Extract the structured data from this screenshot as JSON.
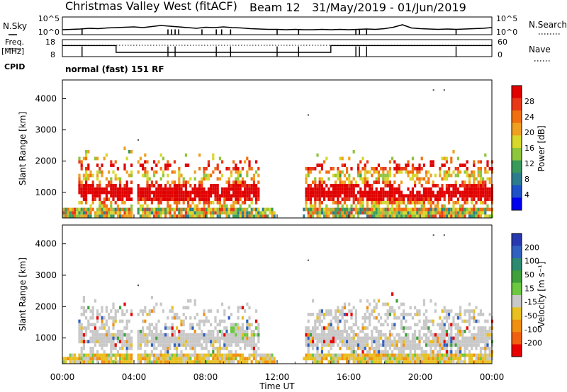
{
  "header": {
    "station": "Christmas Valley West (fitACF)",
    "beam": "Beam 12",
    "dates": "31/May/2019 - 01/Jun/2019"
  },
  "left_labels": {
    "nsky": "N.Sky",
    "freq_line1": "Freq.",
    "freq_line2": "[MHz]",
    "cpid": "CPID",
    "cpid_value": "normal (fast) 151 RF"
  },
  "right_labels": {
    "nsearch": "N.Search",
    "nave": "Nave"
  },
  "chart_data": [
    {
      "type": "line",
      "name": "noise-panel",
      "ylabel": "N.Sky",
      "y2label": "N.Search",
      "ytick_labels": [
        "10^0",
        "10^5"
      ],
      "y2tick_labels": [
        "10^0",
        "10^5"
      ],
      "x_hours": [
        0,
        0.5,
        1,
        1.5,
        2,
        2.5,
        3,
        3.5,
        4,
        4.5,
        5,
        5.5,
        6,
        6.5,
        7,
        7.5,
        8,
        8.5,
        9,
        9.5,
        10,
        10.5,
        11,
        11.5,
        12,
        12.5,
        13,
        13.5,
        14,
        14.5,
        15,
        15.5,
        16,
        16.5,
        17,
        17.5,
        18,
        18.5,
        19,
        19.5,
        20,
        20.5,
        21,
        21.5,
        22,
        22.5,
        23,
        23.5,
        24
      ],
      "nsky_log": [
        1.4,
        1.5,
        1.6,
        1.8,
        1.7,
        1.9,
        2.0,
        2.1,
        2.2,
        2.0,
        2.3,
        2.6,
        2.4,
        2.2,
        2.0,
        1.8,
        2.1,
        2.0,
        2.2,
        2.0,
        1.9,
        1.7,
        1.6,
        1.5,
        1.5,
        1.4,
        1.5,
        1.4,
        1.4,
        1.5,
        1.4,
        1.5,
        1.4,
        1.5,
        1.6,
        1.5,
        1.7,
        2.1,
        2.8,
        1.9,
        1.7,
        1.6,
        1.5,
        1.6,
        1.5,
        1.6,
        1.7,
        1.8,
        2.0
      ],
      "dropouts_hours": [
        1.1,
        5.9,
        6.1,
        6.3,
        6.5,
        7.8,
        8.6,
        8.9,
        9.4,
        12.0,
        13.2,
        16.4,
        16.6,
        17.0,
        22.0
      ]
    },
    {
      "type": "line",
      "name": "frequency-panel",
      "ylabel": "Freq. [MHz]",
      "y2label": "Nave",
      "ytick_labels": [
        "8",
        "18"
      ],
      "y2tick_labels": [
        "0",
        "60"
      ],
      "freq_steps": [
        {
          "from": 0,
          "to": 3,
          "mhz": 14.5
        },
        {
          "from": 3,
          "to": 15,
          "mhz": 10.5
        },
        {
          "from": 15,
          "to": 24,
          "mhz": 14.5
        }
      ],
      "nave_level": 40,
      "dropouts_hours": [
        1.1,
        5.9,
        6.3,
        8.6,
        9.4,
        12.0,
        13.2,
        16.4,
        16.6,
        17.0,
        22.0
      ]
    },
    {
      "type": "heatmap",
      "name": "power-panel",
      "ylabel": "Slant Range [km]",
      "ylim": [
        180,
        4600
      ],
      "yticks": [
        1000,
        2000,
        3000,
        4000
      ],
      "colorbar": {
        "label": "Power [dB]",
        "range": [
          0,
          32
        ],
        "ticks": [
          "4",
          "8",
          "12",
          "16",
          "20",
          "24",
          "28"
        ],
        "colors": [
          "#0000f0",
          "#1e50c8",
          "#2c7c8e",
          "#3a9a5c",
          "#8ec63e",
          "#d8d82a",
          "#f0a020",
          "#f07010",
          "#e83818",
          "#e00000"
        ]
      }
    },
    {
      "type": "heatmap",
      "name": "velocity-panel",
      "ylabel": "Slant Range [km]",
      "ylim": [
        180,
        4600
      ],
      "yticks": [
        1000,
        2000,
        3000,
        4000
      ],
      "colorbar": {
        "label": "Velocity [m s⁻¹]",
        "range": [
          -250,
          250
        ],
        "ticks": [
          "200",
          "100",
          "50",
          "15",
          "-15",
          "-50",
          "-100",
          "-200"
        ],
        "colors": [
          "#2838b0",
          "#3060c0",
          "#2c8a70",
          "#3fa03c",
          "#6cc840",
          "#c8c8c8",
          "#e8c020",
          "#f09010",
          "#f06010",
          "#e80000"
        ]
      }
    }
  ],
  "xaxis": {
    "label": "Time UT",
    "ticks": [
      "00:00",
      "04:00",
      "08:00",
      "12:00",
      "16:00",
      "20:00",
      "00:00"
    ]
  }
}
